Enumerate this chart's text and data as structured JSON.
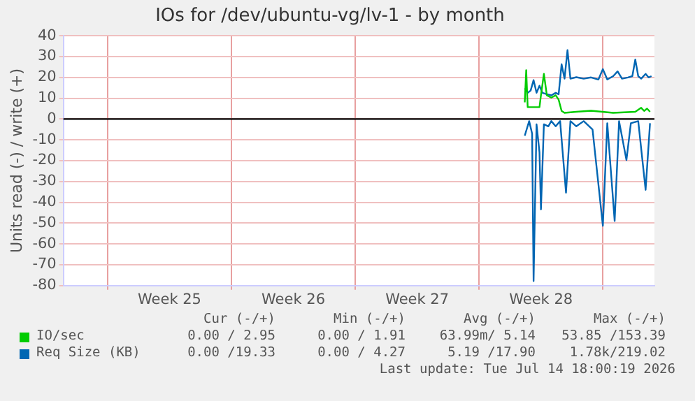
{
  "chart_data": {
    "type": "line",
    "title": "IOs for /dev/ubuntu-vg/lv-1 - by month",
    "ylabel": "Units read (-) / write (+)",
    "xlim": [
      "2026-06-11T12:00",
      "2026-07-14T22:00"
    ],
    "xticks": [
      {
        "value": "2026-06-14T00:00",
        "label": null
      },
      {
        "value": "2026-06-17T12:00",
        "label": "Week 25"
      },
      {
        "value": "2026-06-21T00:00",
        "label": null
      },
      {
        "value": "2026-06-24T12:00",
        "label": "Week 26"
      },
      {
        "value": "2026-06-28T00:00",
        "label": null
      },
      {
        "value": "2026-07-01T12:00",
        "label": "Week 27"
      },
      {
        "value": "2026-07-05T00:00",
        "label": null
      },
      {
        "value": "2026-07-08T12:00",
        "label": "Week 28"
      },
      {
        "value": "2026-07-12T00:00",
        "label": null
      }
    ],
    "ylim": [
      -80,
      40
    ],
    "yticks": [
      -80,
      -70,
      -60,
      -50,
      -40,
      -30,
      -20,
      -10,
      0,
      10,
      20,
      30,
      40
    ],
    "grid": true,
    "marker": "none",
    "legend": "bottom",
    "ref_lines": [
      {
        "axis": "y",
        "value": 0,
        "color": "#000000"
      }
    ],
    "series": [
      {
        "name": "IO/sec",
        "color": "#00cc00",
        "x": [
          "2026-07-07T14:00",
          "2026-07-07T16:00",
          "2026-07-07T18:00",
          "2026-07-08T10:00",
          "2026-07-08T12:00",
          "2026-07-08T16:00",
          "2026-07-08T20:00",
          "2026-07-09T02:00",
          "2026-07-09T08:00",
          "2026-07-09T12:00",
          "2026-07-09T16:00",
          "2026-07-09T20:00",
          "2026-07-10T12:00",
          "2026-07-11T08:00",
          "2026-07-12T14:00",
          "2026-07-13T20:00",
          "2026-07-14T04:00",
          "2026-07-14T08:00",
          "2026-07-14T12:00",
          "2026-07-14T16:00"
        ],
        "values": [
          8,
          23.5,
          5.7,
          5.7,
          11.4,
          21.7,
          11.4,
          10.3,
          11.4,
          9.3,
          3.9,
          3,
          3.5,
          4,
          3,
          3.5,
          5.4,
          3.9,
          5,
          3.5
        ]
      },
      {
        "name": "Req Size (KB)",
        "color": "#0066b3",
        "x": [
          "2026-07-07T14:00",
          "2026-07-07T18:00",
          "2026-07-07T22:00",
          "2026-07-08T02:00",
          "2026-07-08T06:00",
          "2026-07-08T10:00",
          "2026-07-08T14:00",
          "2026-07-08T20:00",
          "2026-07-09T02:00",
          "2026-07-09T08:00",
          "2026-07-09T12:00",
          "2026-07-09T16:00",
          "2026-07-09T20:00",
          "2026-07-09T22:00",
          "2026-07-10T00:00",
          "2026-07-10T04:00",
          "2026-07-10T12:00",
          "2026-07-10T22:00",
          "2026-07-11T08:00",
          "2026-07-11T18:00",
          "2026-07-12T00:00",
          "2026-07-12T06:00",
          "2026-07-12T14:00",
          "2026-07-12T20:00",
          "2026-07-13T02:00",
          "2026-07-13T10:00",
          "2026-07-13T16:00",
          "2026-07-13T20:00",
          "2026-07-14T00:00",
          "2026-07-14T04:00",
          "2026-07-14T10:00",
          "2026-07-14T14:00",
          "2026-07-14T18:00"
        ],
        "values": [
          14.8,
          12.6,
          13.7,
          18.7,
          12.6,
          16,
          12.6,
          11.9,
          11.4,
          12.6,
          11.9,
          26.3,
          19.4,
          26.3,
          33.1,
          19.4,
          20.1,
          19.4,
          20,
          19,
          24,
          19,
          20.6,
          22.9,
          19.4,
          20,
          20.6,
          28.6,
          20.6,
          19.4,
          21.7,
          20,
          20.6
        ]
      },
      {
        "color": "#0066b3",
        "x": [
          "2026-07-07T14:00",
          "2026-07-07T20:00",
          "2026-07-08T00:00",
          "2026-07-08T02:00",
          "2026-07-08T06:00",
          "2026-07-08T10:00",
          "2026-07-08T12:00",
          "2026-07-08T16:00",
          "2026-07-08T22:00",
          "2026-07-09T02:00",
          "2026-07-09T08:00",
          "2026-07-09T14:00",
          "2026-07-09T22:00",
          "2026-07-10T04:00",
          "2026-07-10T12:00",
          "2026-07-10T22:00",
          "2026-07-11T10:00",
          "2026-07-12T00:00",
          "2026-07-12T06:00",
          "2026-07-12T16:00",
          "2026-07-12T22:00",
          "2026-07-13T08:00",
          "2026-07-13T14:00",
          "2026-07-14T00:00",
          "2026-07-14T10:00",
          "2026-07-14T16:00"
        ],
        "values": [
          -8,
          -1,
          -7,
          -77.8,
          -2.5,
          -16,
          -43.4,
          -2.5,
          -3.5,
          -1,
          -3.5,
          -1,
          -35.4,
          -1,
          -3.5,
          -1,
          -5,
          -51.3,
          -2,
          -49,
          -1,
          -19.7,
          -2,
          -1,
          -34,
          -2
        ]
      }
    ],
    "annotations": [
      "Cur (-/+)",
      "Min (-/+)",
      "Avg (-/+)",
      "Max (-/+)",
      "0.00 / 2.95",
      "0.00 / 1.91",
      "63.99m/ 5.14",
      "53.85 /153.39",
      "0.00 /19.33",
      "0.00 / 4.27",
      "5.19 /17.90",
      "1.78k/219.02",
      "Last update: Tue Jul 14 18:00:19 2026"
    ]
  }
}
